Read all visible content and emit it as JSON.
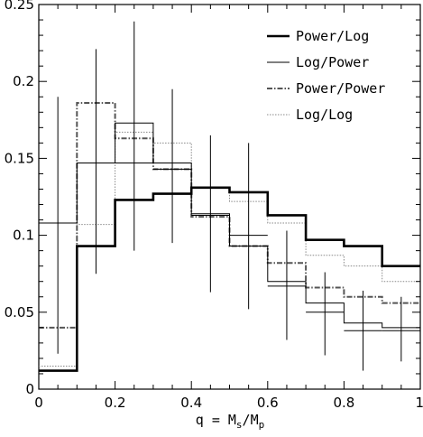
{
  "chart_data": {
    "type": "line",
    "x_edges": [
      0,
      0.1,
      0.2,
      0.3,
      0.4,
      0.5,
      0.6,
      0.7,
      0.8,
      0.9,
      1.0
    ],
    "xlim": [
      0,
      1
    ],
    "ylim": [
      0,
      0.25
    ],
    "x_ticks": [
      0,
      0.2,
      0.4,
      0.6,
      0.8,
      1
    ],
    "x_tick_labels": [
      "0",
      "0.2",
      "0.4",
      "0.6",
      "0.8",
      "1"
    ],
    "y_ticks": [
      0,
      0.05,
      0.1,
      0.15,
      0.2,
      0.25
    ],
    "y_tick_labels": [
      "0",
      "0.05",
      "0.1",
      "0.15",
      "0.2",
      "0.25"
    ],
    "xlabel": {
      "main": "q = M",
      "sub1": "s",
      "mid": "/M",
      "sub2": "p"
    },
    "legend_position": "top-right",
    "series": [
      {
        "name": "Power/Log",
        "style": "solid-thick",
        "color": "#000000",
        "values": [
          0.012,
          0.093,
          0.123,
          0.127,
          0.131,
          0.128,
          0.113,
          0.097,
          0.093,
          0.08
        ]
      },
      {
        "name": "Log/Power",
        "style": "solid-thin",
        "color": "#000000",
        "values": [
          0.108,
          0.147,
          0.173,
          0.147,
          0.114,
          0.093,
          0.07,
          0.056,
          0.043,
          0.04
        ]
      },
      {
        "name": "Power/Power",
        "style": "dashdot",
        "color": "#555555",
        "values": [
          0.04,
          0.186,
          0.163,
          0.143,
          0.112,
          0.093,
          0.082,
          0.066,
          0.06,
          0.056
        ]
      },
      {
        "name": "Log/Log",
        "style": "dotted",
        "color": "#888888",
        "values": [
          0.015,
          0.107,
          0.167,
          0.16,
          0.131,
          0.122,
          0.108,
          0.087,
          0.08,
          0.07
        ]
      }
    ],
    "data_points": {
      "x": [
        0.05,
        0.15,
        0.25,
        0.35,
        0.45,
        0.55,
        0.65,
        0.75,
        0.85,
        0.95
      ],
      "y": [
        0.108,
        0.147,
        0.147,
        0.143,
        0.113,
        0.1,
        0.067,
        0.05,
        0.038,
        0.038
      ],
      "yerr_low": [
        0.023,
        0.075,
        0.09,
        0.095,
        0.063,
        0.052,
        0.032,
        0.022,
        0.012,
        0.018
      ],
      "yerr_high": [
        0.19,
        0.221,
        0.239,
        0.195,
        0.165,
        0.16,
        0.103,
        0.076,
        0.064,
        0.06
      ]
    },
    "grid": false
  }
}
